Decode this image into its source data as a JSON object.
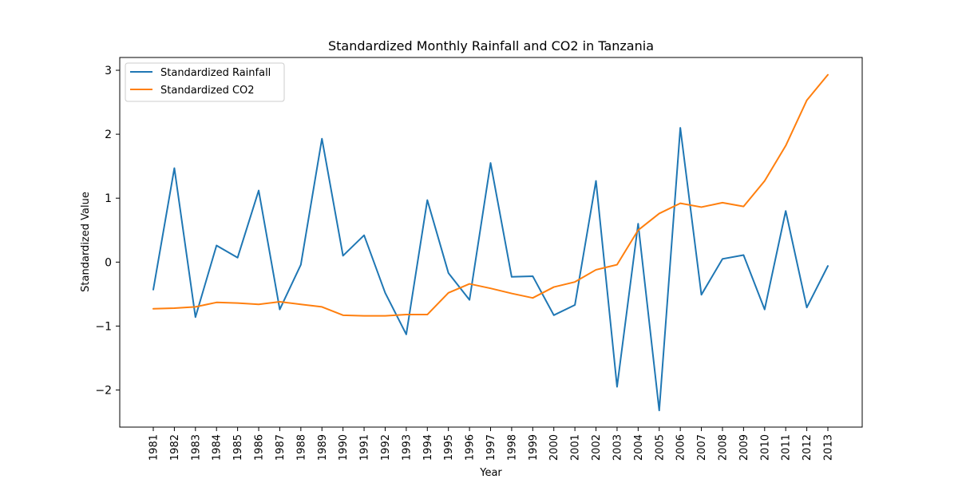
{
  "chart_data": {
    "type": "line",
    "title": "Standardized Monthly Rainfall and CO2 in Tanzania",
    "xlabel": "Year",
    "ylabel": "Standardized Value",
    "x": [
      "1981",
      "1982",
      "1983",
      "1984",
      "1985",
      "1986",
      "1987",
      "1988",
      "1989",
      "1990",
      "1991",
      "1992",
      "1993",
      "1994",
      "1995",
      "1996",
      "1997",
      "1998",
      "1999",
      "2000",
      "2001",
      "2002",
      "2003",
      "2004",
      "2005",
      "2006",
      "2007",
      "2008",
      "2009",
      "2010",
      "2011",
      "2012",
      "2013"
    ],
    "yticks": [
      "−2",
      "−1",
      "0",
      "1",
      "2",
      "3"
    ],
    "ylim": [
      -2.58,
      3.2
    ],
    "grid": false,
    "legend_position": "top-left",
    "series": [
      {
        "name": "Standardized Rainfall",
        "color": "#1f77b4",
        "values": [
          -0.43,
          1.47,
          -0.86,
          0.26,
          0.07,
          1.12,
          -0.74,
          -0.04,
          1.93,
          0.1,
          0.42,
          -0.48,
          -1.13,
          0.97,
          -0.17,
          -0.59,
          1.55,
          -0.23,
          -0.22,
          -0.83,
          -0.67,
          1.27,
          -1.95,
          0.6,
          -2.32,
          2.1,
          -0.51,
          0.05,
          0.11,
          -0.74,
          0.8,
          -0.71,
          -0.06
        ]
      },
      {
        "name": "Standardized CO2",
        "color": "#ff7f0e",
        "values": [
          -0.73,
          -0.72,
          -0.7,
          -0.63,
          -0.64,
          -0.66,
          -0.62,
          -0.66,
          -0.7,
          -0.83,
          -0.84,
          -0.84,
          -0.82,
          -0.82,
          -0.48,
          -0.34,
          -0.41,
          -0.49,
          -0.56,
          -0.39,
          -0.31,
          -0.12,
          -0.04,
          0.5,
          0.76,
          0.92,
          0.86,
          0.93,
          0.87,
          1.27,
          1.82,
          2.53,
          2.93
        ]
      }
    ]
  }
}
